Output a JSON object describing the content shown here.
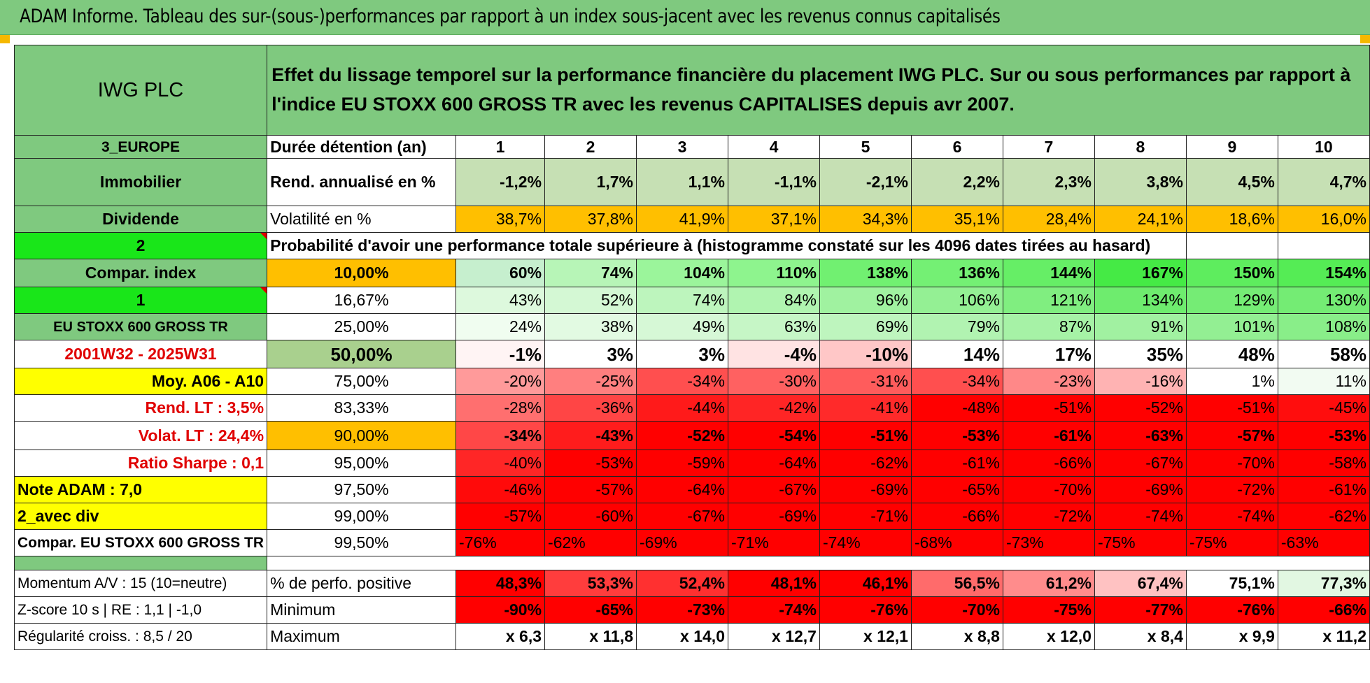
{
  "page_title": "ADAM Informe. Tableau des sur-(sous-)performances par rapport à un index sous-jacent avec les revenus connus capitalisés",
  "header": {
    "company": "IWG PLC",
    "description": "Effet du lissage temporel sur la performance financière du placement IWG PLC. Sur ou sous performances par rapport à l'indice EU STOXX 600 GROSS TR avec les revenus CAPITALISES depuis avr 2007."
  },
  "info": {
    "region": "3_EUROPE",
    "sector": "Immobilier",
    "type": "Dividende",
    "flag1": "2",
    "compar_label": "Compar. index",
    "flag2": "1",
    "index_name": "EU STOXX 600 GROSS TR",
    "period": "2001W32 - 2025W31",
    "moy": "Moy. A06 - A10",
    "rend_lt": "Rend. LT :    3,5%",
    "volat_lt": "Volat. LT :    24,4%",
    "sharpe": "Ratio Sharpe :    0,1",
    "note": "Note ADAM : 7,0",
    "avec_div": "2_avec div",
    "compar_full": "Compar. EU STOXX 600 GROSS TR",
    "momentum": "Momentum A/V : 15 (10=neutre)",
    "zscore": "Z-score 10 s | RE : 1,1 | -1,0",
    "regularite": "Régularité croiss. : 8,5 / 20"
  },
  "metrics": {
    "duration_label": "Durée détention (an)",
    "years": [
      "1",
      "2",
      "3",
      "4",
      "5",
      "6",
      "7",
      "8",
      "9",
      "10"
    ],
    "rend_label": "Rend. annualisé en %",
    "rend": [
      "-1,2%",
      "1,7%",
      "1,1%",
      "-1,1%",
      "-2,1%",
      "2,2%",
      "2,3%",
      "3,8%",
      "4,5%",
      "4,7%"
    ],
    "vol_label": "Volatilité en %",
    "vol": [
      "38,7%",
      "37,8%",
      "41,9%",
      "37,1%",
      "34,3%",
      "35,1%",
      "28,4%",
      "24,1%",
      "18,6%",
      "16,0%"
    ],
    "prob_label": "Probabilité d'avoir une performance totale supérieure à (histogramme constaté sur les 4096 dates tirées au hasard)"
  },
  "quantiles": [
    {
      "p": "10,00%",
      "v": [
        "60%",
        "74%",
        "104%",
        "110%",
        "138%",
        "136%",
        "144%",
        "167%",
        "150%",
        "154%"
      ]
    },
    {
      "p": "16,67%",
      "v": [
        "43%",
        "52%",
        "74%",
        "84%",
        "96%",
        "106%",
        "121%",
        "134%",
        "129%",
        "130%"
      ]
    },
    {
      "p": "25,00%",
      "v": [
        "24%",
        "38%",
        "49%",
        "63%",
        "69%",
        "79%",
        "87%",
        "91%",
        "101%",
        "108%"
      ]
    },
    {
      "p": "50,00%",
      "v": [
        "-1%",
        "3%",
        "3%",
        "-4%",
        "-10%",
        "14%",
        "17%",
        "35%",
        "48%",
        "58%"
      ]
    },
    {
      "p": "75,00%",
      "v": [
        "-20%",
        "-25%",
        "-34%",
        "-30%",
        "-31%",
        "-34%",
        "-23%",
        "-16%",
        "1%",
        "11%"
      ]
    },
    {
      "p": "83,33%",
      "v": [
        "-28%",
        "-36%",
        "-44%",
        "-42%",
        "-41%",
        "-48%",
        "-51%",
        "-52%",
        "-51%",
        "-45%"
      ]
    },
    {
      "p": "90,00%",
      "v": [
        "-34%",
        "-43%",
        "-52%",
        "-54%",
        "-51%",
        "-53%",
        "-61%",
        "-63%",
        "-57%",
        "-53%"
      ]
    },
    {
      "p": "95,00%",
      "v": [
        "-40%",
        "-53%",
        "-59%",
        "-64%",
        "-62%",
        "-61%",
        "-66%",
        "-67%",
        "-70%",
        "-58%"
      ]
    },
    {
      "p": "97,50%",
      "v": [
        "-46%",
        "-57%",
        "-64%",
        "-67%",
        "-69%",
        "-65%",
        "-70%",
        "-69%",
        "-72%",
        "-61%"
      ]
    },
    {
      "p": "99,00%",
      "v": [
        "-57%",
        "-60%",
        "-67%",
        "-69%",
        "-71%",
        "-66%",
        "-72%",
        "-74%",
        "-74%",
        "-62%"
      ]
    },
    {
      "p": "99,50%",
      "v": [
        "-76%",
        "-62%",
        "-69%",
        "-71%",
        "-74%",
        "-68%",
        "-73%",
        "-75%",
        "-75%",
        "-63%"
      ]
    }
  ],
  "bottom": {
    "pos_label": "% de perfo. positive",
    "pos": [
      "48,3%",
      "53,3%",
      "52,4%",
      "48,1%",
      "46,1%",
      "56,5%",
      "61,2%",
      "67,4%",
      "75,1%",
      "77,3%"
    ],
    "min_label": "Minimum",
    "min": [
      "-90%",
      "-65%",
      "-73%",
      "-74%",
      "-76%",
      "-70%",
      "-75%",
      "-77%",
      "-76%",
      "-66%"
    ],
    "max_label": "Maximum",
    "max": [
      "x 6,3",
      "x 11,8",
      "x 14,0",
      "x 12,7",
      "x 12,1",
      "x 8,8",
      "x 12,0",
      "x 8,4",
      "x 9,9",
      "x 11,2"
    ]
  },
  "colors": {
    "header_green": "#7fc97f",
    "bright_green": "#19e619",
    "yellow": "#ffff00",
    "orange": "#ffbf00",
    "red_text": "#e00000"
  }
}
